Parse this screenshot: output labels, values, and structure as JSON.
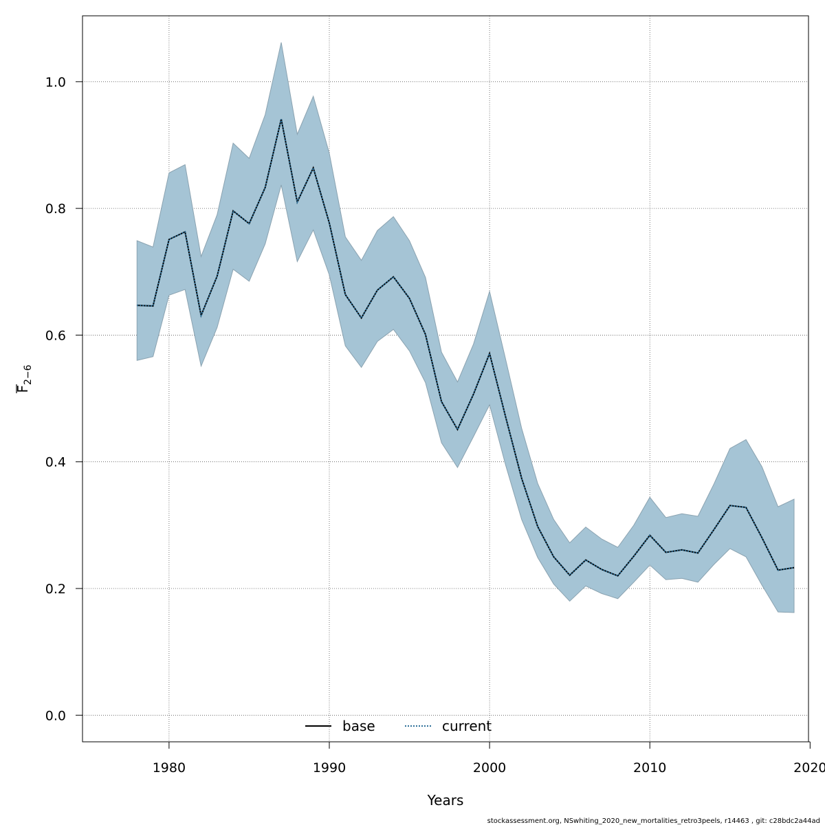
{
  "chart_data": {
    "type": "line",
    "xlabel": "Years",
    "ylabel_main": "F",
    "ylabel_sub": "2−6",
    "xlim": [
      1974.6,
      2019.9
    ],
    "ylim": [
      -0.042,
      1.104
    ],
    "xticks": [
      1980,
      1990,
      2000,
      2010,
      2020
    ],
    "yticks": [
      0.0,
      0.2,
      0.4,
      0.6,
      0.8,
      1.0
    ],
    "ytick_labels": [
      "0.0",
      "0.2",
      "0.4",
      "0.6",
      "0.8",
      "1.0"
    ],
    "grid": true,
    "legend_placement": "bottom-center",
    "band_color": "#a5c4d5",
    "band_edge_color": "#8aa2b0",
    "line_color": "#000000",
    "current_line_color": "#2c6f99",
    "x": [
      1978,
      1979,
      1980,
      1981,
      1982,
      1983,
      1984,
      1985,
      1986,
      1987,
      1988,
      1989,
      1990,
      1991,
      1992,
      1993,
      1994,
      1995,
      1996,
      1997,
      1998,
      1999,
      2000,
      2001,
      2002,
      2003,
      2004,
      2005,
      2006,
      2007,
      2008,
      2009,
      2010,
      2011,
      2012,
      2013,
      2014,
      2015,
      2016,
      2017,
      2018,
      2019
    ],
    "series": [
      {
        "name": "base",
        "style": "solid",
        "values": [
          0.647,
          0.646,
          0.751,
          0.763,
          0.631,
          0.693,
          0.796,
          0.776,
          0.833,
          0.941,
          0.81,
          0.864,
          0.777,
          0.664,
          0.627,
          0.671,
          0.692,
          0.658,
          0.601,
          0.495,
          0.451,
          0.507,
          0.571,
          0.471,
          0.374,
          0.298,
          0.25,
          0.221,
          0.245,
          0.23,
          0.22,
          0.251,
          0.284,
          0.257,
          0.261,
          0.256,
          0.293,
          0.331,
          0.328,
          0.28,
          0.229,
          0.233
        ]
      },
      {
        "name": "current",
        "style": "dotted",
        "values": [
          0.647,
          0.646,
          0.751,
          0.763,
          0.631,
          0.693,
          0.796,
          0.776,
          0.833,
          0.941,
          0.81,
          0.864,
          0.777,
          0.664,
          0.627,
          0.671,
          0.692,
          0.658,
          0.601,
          0.495,
          0.451,
          0.507,
          0.571,
          0.471,
          0.374,
          0.298,
          0.25,
          0.221,
          0.245,
          0.23,
          0.22,
          0.251,
          0.284,
          0.257,
          0.261,
          0.256,
          0.293,
          0.331,
          0.328,
          0.28,
          0.229,
          0.233
        ]
      }
    ],
    "band": {
      "upper": [
        0.749,
        0.739,
        0.856,
        0.869,
        0.724,
        0.79,
        0.903,
        0.879,
        0.948,
        1.062,
        0.917,
        0.977,
        0.887,
        0.755,
        0.718,
        0.765,
        0.787,
        0.749,
        0.691,
        0.573,
        0.526,
        0.586,
        0.669,
        0.562,
        0.453,
        0.366,
        0.309,
        0.272,
        0.297,
        0.278,
        0.265,
        0.3,
        0.344,
        0.312,
        0.318,
        0.314,
        0.365,
        0.421,
        0.435,
        0.392,
        0.329,
        0.341
      ],
      "lower": [
        0.56,
        0.566,
        0.663,
        0.672,
        0.551,
        0.612,
        0.704,
        0.685,
        0.744,
        0.837,
        0.716,
        0.766,
        0.695,
        0.583,
        0.549,
        0.59,
        0.609,
        0.575,
        0.525,
        0.43,
        0.391,
        0.44,
        0.49,
        0.395,
        0.309,
        0.249,
        0.207,
        0.18,
        0.204,
        0.192,
        0.184,
        0.21,
        0.237,
        0.214,
        0.216,
        0.21,
        0.238,
        0.263,
        0.25,
        0.205,
        0.163,
        0.162
      ]
    }
  },
  "footer": "stockassessment.org, NSwhiting_2020_new_mortalities_retro3peels, r14463 , git: c28bdc2a44ad"
}
